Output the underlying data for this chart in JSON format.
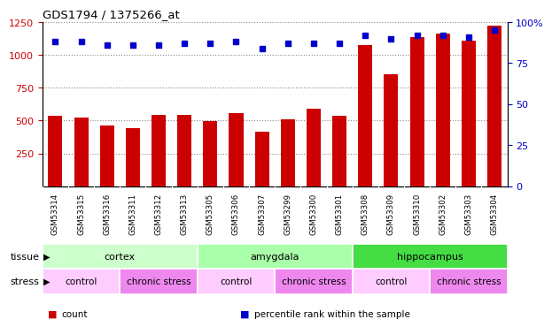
{
  "title": "GDS1794 / 1375266_at",
  "samples": [
    "GSM53314",
    "GSM53315",
    "GSM53316",
    "GSM53311",
    "GSM53312",
    "GSM53313",
    "GSM53305",
    "GSM53306",
    "GSM53307",
    "GSM53299",
    "GSM53300",
    "GSM53301",
    "GSM53308",
    "GSM53309",
    "GSM53310",
    "GSM53302",
    "GSM53303",
    "GSM53304"
  ],
  "counts": [
    535,
    520,
    465,
    445,
    540,
    540,
    495,
    555,
    415,
    510,
    590,
    535,
    1075,
    855,
    1135,
    1160,
    1110,
    1220
  ],
  "percentiles": [
    88,
    88,
    86,
    86,
    86,
    87,
    87,
    88,
    84,
    87,
    87,
    87,
    92,
    90,
    92,
    92,
    91,
    95
  ],
  "ylim_left": [
    0,
    1250
  ],
  "ylim_right": [
    0,
    100
  ],
  "yticks_left": [
    250,
    500,
    750,
    1000,
    1250
  ],
  "yticks_right": [
    0,
    25,
    50,
    75,
    100
  ],
  "bar_color": "#cc0000",
  "dot_color": "#0000cc",
  "tissue_groups": [
    {
      "label": "cortex",
      "start": 0,
      "end": 6,
      "color": "#ccffcc"
    },
    {
      "label": "amygdala",
      "start": 6,
      "end": 12,
      "color": "#aaffaa"
    },
    {
      "label": "hippocampus",
      "start": 12,
      "end": 18,
      "color": "#44dd44"
    }
  ],
  "stress_groups": [
    {
      "label": "control",
      "start": 0,
      "end": 3,
      "color": "#ffccff"
    },
    {
      "label": "chronic stress",
      "start": 3,
      "end": 6,
      "color": "#ee88ee"
    },
    {
      "label": "control",
      "start": 6,
      "end": 9,
      "color": "#ffccff"
    },
    {
      "label": "chronic stress",
      "start": 9,
      "end": 12,
      "color": "#ee88ee"
    },
    {
      "label": "control",
      "start": 12,
      "end": 15,
      "color": "#ffccff"
    },
    {
      "label": "chronic stress",
      "start": 15,
      "end": 18,
      "color": "#ee88ee"
    }
  ],
  "legend_items": [
    {
      "label": "count",
      "color": "#cc0000"
    },
    {
      "label": "percentile rank within the sample",
      "color": "#0000cc"
    }
  ],
  "grid_color": "#888888",
  "background_color": "#ffffff",
  "tick_label_color_left": "#cc0000",
  "tick_label_color_right": "#0000cc",
  "tissue_label": "tissue",
  "stress_label": "stress",
  "bar_width": 0.55,
  "xtick_bg": "#d8d8d8"
}
